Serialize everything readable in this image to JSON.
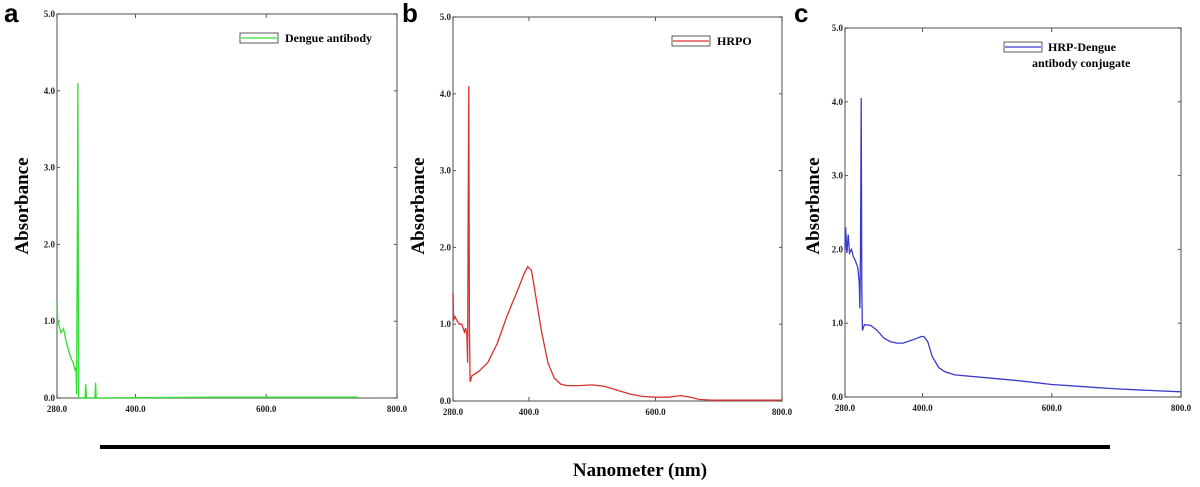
{
  "chart_data": [
    {
      "type": "line",
      "panel_label": "a",
      "ylabel": "Absorbance",
      "xlim": [
        280,
        800
      ],
      "ylim": [
        0,
        5
      ],
      "x_ticks": [
        "280.0",
        "400.0",
        "600.0",
        "800.0"
      ],
      "y_ticks": [
        "0.0",
        "1.0",
        "2.0",
        "3.0",
        "4.0",
        "5.0"
      ],
      "legend_position": "top-right",
      "series": [
        {
          "name": "Dengue antibody",
          "color": "#33dd33",
          "x": [
            280,
            281,
            283,
            286,
            290,
            295,
            300,
            305,
            308,
            309,
            310,
            311,
            312,
            313,
            314,
            323,
            324,
            325,
            326,
            338,
            339,
            340,
            341,
            520,
            700,
            710,
            740
          ],
          "y": [
            1.25,
            1.0,
            0.95,
            0.85,
            0.9,
            0.7,
            0.55,
            0.45,
            0.35,
            0.4,
            0.05,
            2.0,
            4.1,
            0.0,
            0.0,
            0.0,
            0.18,
            0.0,
            0.0,
            0.0,
            0.2,
            0.0,
            0.0,
            0.01,
            0.01,
            0.01,
            0.01
          ]
        }
      ]
    },
    {
      "type": "line",
      "panel_label": "b",
      "ylabel": "Absorbance",
      "xlim": [
        280,
        800
      ],
      "ylim": [
        0,
        5
      ],
      "x_ticks": [
        "280.0",
        "400.0",
        "600.0",
        "800.0"
      ],
      "y_ticks": [
        "0.0",
        "1.0",
        "2.0",
        "3.0",
        "4.0",
        "5.0"
      ],
      "legend_position": "top-right",
      "series": [
        {
          "name": "HRPO",
          "color": "#d93030",
          "x": [
            280,
            281,
            283,
            286,
            290,
            294,
            298,
            300,
            302,
            303,
            304,
            305,
            306,
            307,
            310,
            320,
            335,
            350,
            365,
            380,
            392,
            398,
            404,
            410,
            420,
            430,
            440,
            450,
            460,
            480,
            500,
            520,
            540,
            560,
            580,
            600,
            620,
            640,
            655,
            670,
            690,
            720,
            800
          ],
          "y": [
            1.4,
            1.05,
            1.1,
            1.05,
            1.0,
            1.0,
            0.9,
            0.95,
            0.85,
            0.5,
            2.5,
            4.1,
            1.0,
            0.25,
            0.33,
            0.38,
            0.5,
            0.75,
            1.1,
            1.4,
            1.65,
            1.75,
            1.7,
            1.4,
            0.9,
            0.5,
            0.3,
            0.22,
            0.2,
            0.2,
            0.21,
            0.19,
            0.14,
            0.09,
            0.06,
            0.05,
            0.05,
            0.07,
            0.05,
            0.02,
            0.01,
            0.01,
            0.01
          ]
        }
      ]
    },
    {
      "type": "line",
      "panel_label": "c",
      "ylabel": "Absorbance",
      "xlim": [
        280,
        800
      ],
      "ylim": [
        0,
        5
      ],
      "x_ticks": [
        "280.0",
        "400.0",
        "600.0",
        "800.0"
      ],
      "y_ticks": [
        "0.0",
        "1.0",
        "2.0",
        "3.0",
        "4.0",
        "5.0"
      ],
      "legend_position": "top-right",
      "series": [
        {
          "name": "HRP-Dengue antibody conjugate",
          "color": "#3a3acc",
          "x": [
            280,
            281,
            283,
            285,
            287,
            290,
            293,
            296,
            298,
            300,
            302,
            303,
            304,
            305,
            306,
            307,
            310,
            320,
            330,
            340,
            350,
            360,
            370,
            380,
            390,
            398,
            402,
            408,
            415,
            425,
            435,
            450,
            500,
            550,
            600,
            650,
            700,
            750,
            800
          ],
          "y": [
            2.0,
            2.3,
            1.95,
            2.2,
            1.95,
            2.0,
            1.9,
            1.85,
            1.8,
            1.75,
            1.55,
            1.2,
            2.0,
            4.05,
            1.5,
            0.9,
            0.98,
            0.97,
            0.9,
            0.8,
            0.75,
            0.73,
            0.73,
            0.76,
            0.79,
            0.82,
            0.82,
            0.75,
            0.55,
            0.4,
            0.34,
            0.3,
            0.26,
            0.22,
            0.17,
            0.14,
            0.11,
            0.09,
            0.07
          ]
        }
      ]
    }
  ],
  "shared_xlabel": "Nanometer (nm)"
}
